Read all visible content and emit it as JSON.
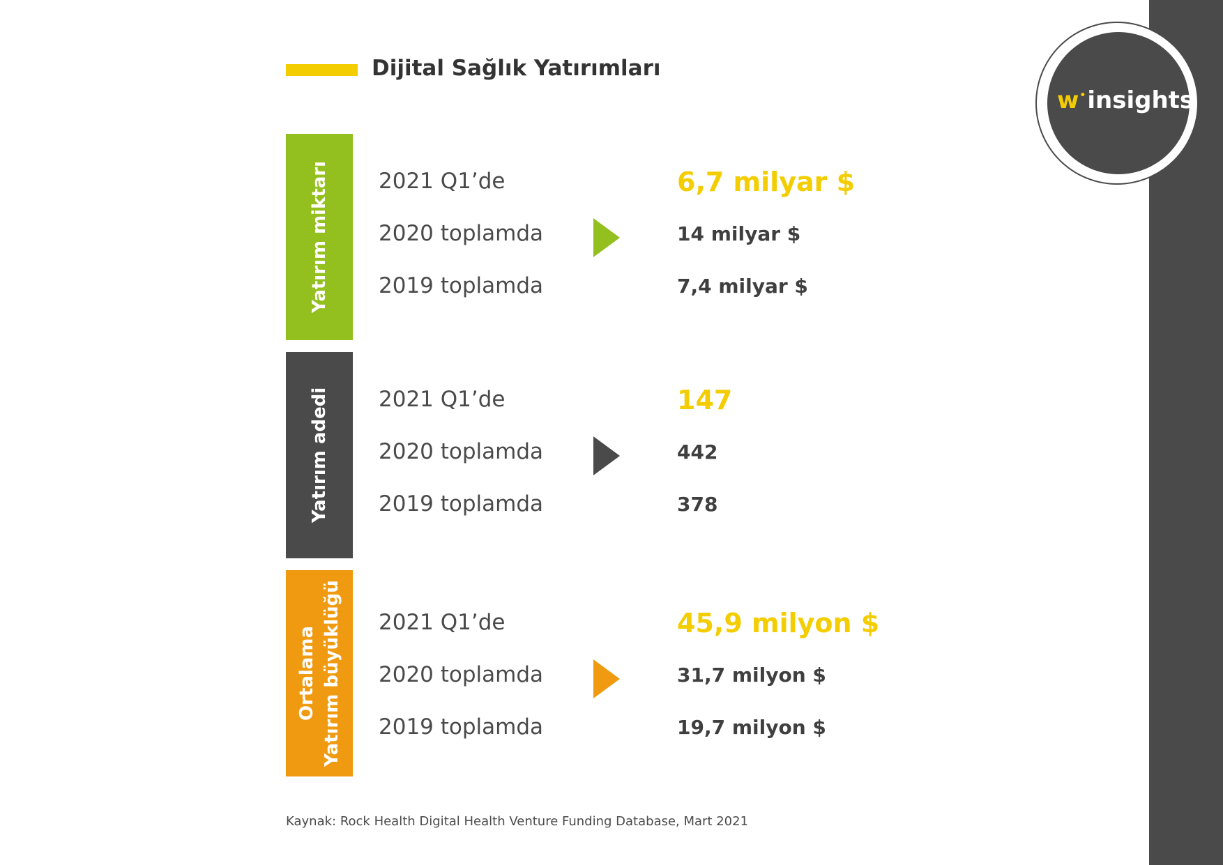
{
  "colors": {
    "accent_yellow": "#f4cd00",
    "green": "#93c01f",
    "dark": "#4a4a4a",
    "orange": "#ef9a10",
    "text_dark": "#3f3f3f",
    "white": "#ffffff"
  },
  "logo": {
    "w": "w",
    "dot": "•",
    "rest": "insights"
  },
  "header": {
    "title": "Dijital Sağlık Yatırımları"
  },
  "blocks": [
    {
      "label_lines": [
        "Yatırım miktarı"
      ],
      "color": "#93c01f",
      "arrow_icon": "arrow-right-icon",
      "rows": [
        {
          "label": "2021 Q1’de",
          "value": "6,7 milyar $"
        },
        {
          "label": "2020 toplamda",
          "value": "14 milyar $"
        },
        {
          "label": "2019 toplamda",
          "value": "7,4 milyar $"
        }
      ]
    },
    {
      "label_lines": [
        "Yatırım adedi"
      ],
      "color": "#4a4a4a",
      "arrow_icon": "arrow-right-icon",
      "rows": [
        {
          "label": "2021 Q1’de",
          "value": "147"
        },
        {
          "label": "2020 toplamda",
          "value": "442"
        },
        {
          "label": "2019 toplamda",
          "value": "378"
        }
      ]
    },
    {
      "label_lines": [
        "Ortalama",
        "Yatırım büyüklüğü"
      ],
      "color": "#ef9a10",
      "arrow_icon": "arrow-right-icon",
      "rows": [
        {
          "label": "2021 Q1’de",
          "value": "45,9 milyon $"
        },
        {
          "label": "2020 toplamda",
          "value": "31,7 milyon $"
        },
        {
          "label": "2019 toplamda",
          "value": "19,7 milyon $"
        }
      ]
    }
  ],
  "footer": {
    "source": "Kaynak: Rock Health Digital Health Venture Funding Database, Mart 2021"
  }
}
